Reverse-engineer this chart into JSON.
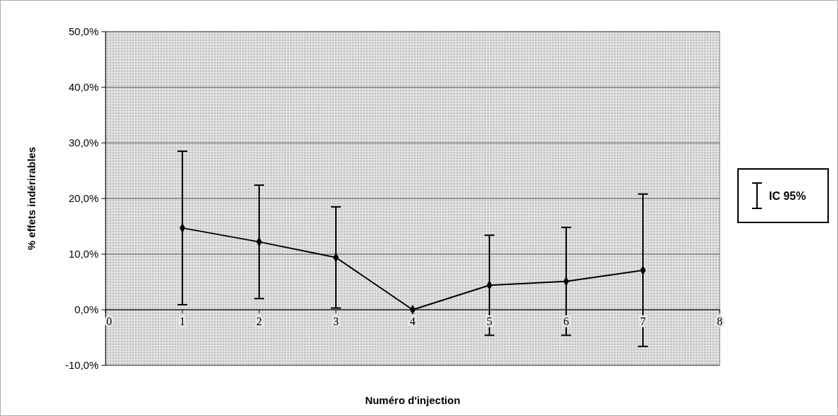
{
  "chart_data": {
    "type": "line",
    "xlabel": "Numéro d'injection",
    "ylabel": "% effets indérirables",
    "x": [
      1,
      2,
      3,
      4,
      5,
      6,
      7
    ],
    "series": [
      {
        "name": "IC 95%",
        "color": "#000000",
        "values": [
          14.7,
          12.2,
          9.4,
          0,
          4.4,
          5.1,
          7.1
        ],
        "errors": [
          13.8,
          10.2,
          9.1,
          null,
          9.0,
          9.7,
          13.7
        ]
      }
    ],
    "xlim": [
      0,
      8
    ],
    "xticks": [
      0,
      1,
      2,
      3,
      4,
      5,
      6,
      7,
      8
    ],
    "ylim": [
      -10,
      50
    ],
    "yticks": [
      {
        "value": -10,
        "label": "-10,0%"
      },
      {
        "value": 0,
        "label": "0,0%"
      },
      {
        "value": 10,
        "label": "10,0%"
      },
      {
        "value": 20,
        "label": "20,0%"
      },
      {
        "value": 30,
        "label": "30,0%"
      },
      {
        "value": 40,
        "label": "40,0%"
      },
      {
        "value": 50,
        "label": "50,0%"
      }
    ],
    "grid": "y",
    "legend": "right",
    "marker": "diamond",
    "line_style": "solid"
  }
}
